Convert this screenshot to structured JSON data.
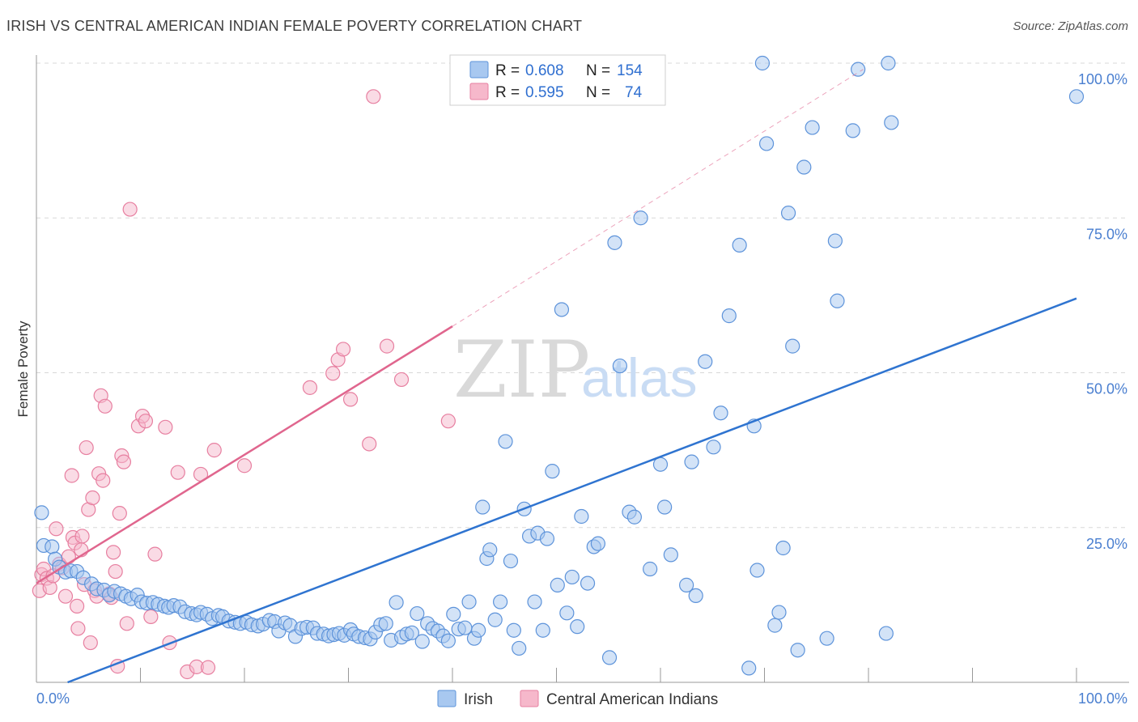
{
  "title": "IRISH VS CENTRAL AMERICAN INDIAN FEMALE POVERTY CORRELATION CHART",
  "source": "Source: ZipAtlas.com",
  "watermark": {
    "zip": "ZIP",
    "atlas": "atlas"
  },
  "colors": {
    "irish_fill": "#a8c8f0",
    "irish_stroke": "#5d93da",
    "irish_line": "#2f74d0",
    "cai_fill": "#f6b8cb",
    "cai_stroke": "#e77fa0",
    "cai_line": "#e0668e",
    "grid": "#d8d8d8",
    "axis_text": "#4a7fd0"
  },
  "legend": {
    "rows": [
      {
        "r_label": "R =",
        "r_value": "0.608",
        "n_label": "N =",
        "n_value": "154"
      },
      {
        "r_label": "R =",
        "r_value": "0.595",
        "n_label": "N =",
        "n_value": "74"
      }
    ]
  },
  "bottom_legend": [
    "Irish",
    "Central American Indians"
  ],
  "chart_data": {
    "type": "scatter",
    "title": "IRISH VS CENTRAL AMERICAN INDIAN FEMALE POVERTY CORRELATION CHART",
    "xlabel": "",
    "ylabel": "Female Poverty",
    "xlim": [
      0,
      100
    ],
    "ylim": [
      0,
      100
    ],
    "x_tick_labels": [
      "0.0%",
      "100.0%"
    ],
    "y_tick_labels": [
      "25.0%",
      "50.0%",
      "75.0%",
      "100.0%"
    ],
    "y_ticks": [
      25,
      50,
      75,
      100
    ],
    "series": [
      {
        "name": "Irish",
        "r": 0.608,
        "n": 154,
        "trend": {
          "x": [
            3.0,
            100.0
          ],
          "y": [
            0.0,
            62.0
          ]
        },
        "points": [
          [
            0.5,
            27.4
          ],
          [
            0.7,
            22.1
          ],
          [
            1.5,
            21.9
          ],
          [
            1.8,
            19.9
          ],
          [
            2.2,
            18.6
          ],
          [
            2.8,
            17.8
          ],
          [
            3.3,
            18.0
          ],
          [
            3.9,
            17.9
          ],
          [
            4.5,
            16.9
          ],
          [
            5.3,
            15.9
          ],
          [
            5.8,
            15.1
          ],
          [
            6.5,
            14.9
          ],
          [
            7.0,
            14.1
          ],
          [
            7.5,
            14.7
          ],
          [
            8.1,
            14.3
          ],
          [
            8.6,
            13.9
          ],
          [
            9.1,
            13.5
          ],
          [
            9.7,
            14.1
          ],
          [
            10.1,
            13.0
          ],
          [
            10.6,
            12.8
          ],
          [
            11.2,
            12.9
          ],
          [
            11.7,
            12.6
          ],
          [
            12.3,
            12.3
          ],
          [
            12.7,
            12.1
          ],
          [
            13.2,
            12.4
          ],
          [
            13.8,
            12.2
          ],
          [
            14.3,
            11.4
          ],
          [
            14.9,
            11.1
          ],
          [
            15.4,
            10.9
          ],
          [
            15.8,
            11.3
          ],
          [
            16.4,
            11.0
          ],
          [
            16.9,
            10.3
          ],
          [
            17.5,
            10.8
          ],
          [
            17.9,
            10.6
          ],
          [
            18.5,
            9.9
          ],
          [
            19.1,
            9.7
          ],
          [
            19.6,
            9.5
          ],
          [
            20.2,
            9.7
          ],
          [
            20.7,
            9.3
          ],
          [
            21.3,
            9.1
          ],
          [
            21.8,
            9.4
          ],
          [
            22.4,
            10.0
          ],
          [
            22.9,
            9.8
          ],
          [
            23.3,
            8.3
          ],
          [
            23.9,
            9.6
          ],
          [
            24.4,
            9.2
          ],
          [
            24.9,
            7.4
          ],
          [
            25.5,
            8.7
          ],
          [
            26.0,
            8.9
          ],
          [
            26.6,
            8.8
          ],
          [
            27.0,
            7.9
          ],
          [
            27.6,
            7.8
          ],
          [
            28.1,
            7.5
          ],
          [
            28.6,
            7.7
          ],
          [
            29.1,
            7.9
          ],
          [
            29.6,
            7.6
          ],
          [
            30.2,
            8.5
          ],
          [
            30.5,
            7.8
          ],
          [
            31.0,
            7.4
          ],
          [
            31.6,
            7.2
          ],
          [
            32.1,
            7.0
          ],
          [
            32.6,
            8.1
          ],
          [
            33.1,
            9.3
          ],
          [
            33.6,
            9.5
          ],
          [
            34.1,
            6.8
          ],
          [
            34.6,
            12.9
          ],
          [
            35.1,
            7.3
          ],
          [
            35.6,
            7.8
          ],
          [
            36.1,
            8.0
          ],
          [
            36.6,
            11.1
          ],
          [
            37.1,
            6.6
          ],
          [
            37.6,
            9.5
          ],
          [
            38.1,
            8.7
          ],
          [
            38.6,
            8.3
          ],
          [
            39.1,
            7.5
          ],
          [
            39.6,
            6.7
          ],
          [
            40.1,
            11.0
          ],
          [
            40.6,
            8.6
          ],
          [
            41.2,
            8.8
          ],
          [
            41.6,
            13.0
          ],
          [
            42.1,
            7.1
          ],
          [
            42.5,
            8.4
          ],
          [
            42.9,
            28.3
          ],
          [
            43.3,
            20.0
          ],
          [
            43.6,
            21.4
          ],
          [
            44.1,
            10.1
          ],
          [
            44.6,
            13.0
          ],
          [
            45.1,
            38.9
          ],
          [
            45.6,
            19.6
          ],
          [
            45.9,
            8.4
          ],
          [
            46.4,
            5.5
          ],
          [
            46.9,
            28.0
          ],
          [
            47.4,
            23.6
          ],
          [
            47.9,
            13.0
          ],
          [
            48.2,
            24.1
          ],
          [
            48.7,
            8.4
          ],
          [
            49.1,
            23.2
          ],
          [
            49.6,
            34.1
          ],
          [
            50.1,
            15.7
          ],
          [
            50.5,
            60.2
          ],
          [
            51.0,
            11.2
          ],
          [
            51.5,
            17.0
          ],
          [
            52.0,
            9.0
          ],
          [
            52.4,
            26.8
          ],
          [
            53.0,
            16.0
          ],
          [
            53.6,
            21.9
          ],
          [
            54.0,
            22.4
          ],
          [
            55.1,
            4.0
          ],
          [
            55.6,
            71.0
          ],
          [
            56.1,
            51.1
          ],
          [
            57.0,
            27.5
          ],
          [
            57.5,
            26.7
          ],
          [
            58.1,
            75.0
          ],
          [
            59.0,
            18.3
          ],
          [
            60.0,
            35.2
          ],
          [
            60.4,
            28.3
          ],
          [
            61.0,
            20.6
          ],
          [
            62.5,
            15.7
          ],
          [
            63.0,
            35.6
          ],
          [
            63.4,
            14.0
          ],
          [
            64.3,
            51.8
          ],
          [
            65.1,
            38.0
          ],
          [
            65.8,
            43.5
          ],
          [
            66.6,
            59.2
          ],
          [
            67.6,
            70.6
          ],
          [
            68.5,
            2.3
          ],
          [
            69.0,
            41.4
          ],
          [
            69.3,
            18.1
          ],
          [
            69.8,
            100.0
          ],
          [
            70.2,
            87.0
          ],
          [
            71.0,
            9.2
          ],
          [
            71.4,
            11.3
          ],
          [
            71.8,
            21.7
          ],
          [
            72.3,
            75.8
          ],
          [
            72.7,
            54.3
          ],
          [
            73.2,
            5.2
          ],
          [
            73.8,
            83.2
          ],
          [
            74.6,
            89.6
          ],
          [
            76.0,
            7.1
          ],
          [
            76.8,
            71.3
          ],
          [
            77.0,
            61.6
          ],
          [
            78.5,
            89.1
          ],
          [
            79.0,
            99.0
          ],
          [
            81.7,
            7.9
          ],
          [
            81.9,
            100.0
          ],
          [
            82.2,
            90.4
          ],
          [
            100.0,
            94.6
          ]
        ]
      },
      {
        "name": "Central American Indians",
        "r": 0.595,
        "n": 74,
        "trend": {
          "x": [
            0.0,
            40.0
          ],
          "y": [
            16.0,
            57.5
          ]
        },
        "trend_dashed": {
          "x": [
            40.0,
            79.5
          ],
          "y": [
            57.5,
            99.0
          ]
        },
        "points": [
          [
            0.3,
            14.8
          ],
          [
            0.5,
            17.4
          ],
          [
            0.7,
            18.3
          ],
          [
            1.0,
            16.8
          ],
          [
            1.3,
            15.3
          ],
          [
            1.6,
            17.2
          ],
          [
            1.9,
            24.8
          ],
          [
            2.2,
            19.1
          ],
          [
            2.5,
            18.5
          ],
          [
            2.8,
            13.9
          ],
          [
            3.1,
            20.3
          ],
          [
            3.4,
            33.4
          ],
          [
            3.5,
            23.4
          ],
          [
            3.7,
            22.5
          ],
          [
            3.9,
            12.3
          ],
          [
            4.0,
            8.7
          ],
          [
            4.3,
            21.4
          ],
          [
            4.4,
            23.6
          ],
          [
            4.6,
            15.8
          ],
          [
            4.8,
            37.9
          ],
          [
            5.0,
            27.9
          ],
          [
            5.2,
            6.4
          ],
          [
            5.4,
            29.8
          ],
          [
            5.6,
            14.8
          ],
          [
            5.8,
            13.9
          ],
          [
            6.0,
            33.7
          ],
          [
            6.2,
            46.3
          ],
          [
            6.4,
            32.6
          ],
          [
            6.6,
            44.6
          ],
          [
            7.0,
            14.3
          ],
          [
            7.2,
            13.7
          ],
          [
            7.4,
            21.0
          ],
          [
            7.6,
            17.9
          ],
          [
            7.8,
            2.6
          ],
          [
            8.0,
            27.3
          ],
          [
            8.2,
            36.6
          ],
          [
            8.4,
            35.6
          ],
          [
            8.7,
            9.5
          ],
          [
            9.0,
            76.4
          ],
          [
            9.8,
            41.4
          ],
          [
            10.2,
            43.0
          ],
          [
            10.5,
            42.2
          ],
          [
            11.0,
            10.6
          ],
          [
            11.4,
            20.7
          ],
          [
            12.4,
            41.2
          ],
          [
            12.8,
            6.4
          ],
          [
            13.6,
            33.9
          ],
          [
            14.5,
            1.7
          ],
          [
            15.4,
            2.5
          ],
          [
            15.8,
            33.6
          ],
          [
            16.5,
            2.4
          ],
          [
            17.1,
            37.5
          ],
          [
            20.0,
            35.0
          ],
          [
            26.3,
            47.6
          ],
          [
            28.5,
            49.9
          ],
          [
            29.0,
            52.1
          ],
          [
            29.5,
            53.8
          ],
          [
            30.2,
            45.7
          ],
          [
            32.0,
            38.5
          ],
          [
            32.4,
            94.6
          ],
          [
            33.7,
            54.3
          ],
          [
            35.1,
            48.9
          ],
          [
            39.6,
            42.2
          ]
        ]
      }
    ]
  }
}
